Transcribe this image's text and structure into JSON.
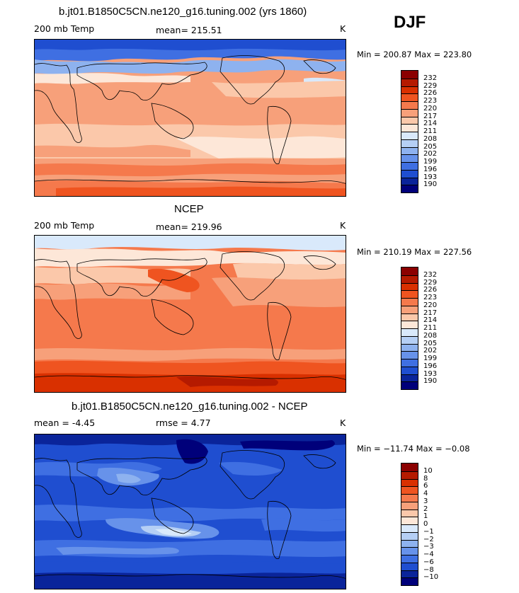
{
  "season": "DJF",
  "panels": [
    {
      "title": "b.jt01.B1850C5CN.ne120_g16.tuning.002 (yrs 1860)",
      "left_label": "200 mb Temp",
      "center_label": "mean= 215.51",
      "right_label": "K",
      "minmax": "Min = 200.87 Max = 223.80",
      "levels": [
        "232",
        "229",
        "226",
        "223",
        "220",
        "217",
        "214",
        "211",
        "208",
        "205",
        "202",
        "199",
        "196",
        "193",
        "190"
      ],
      "colors": [
        "#8b0000",
        "#b51a00",
        "#d93000",
        "#ef5420",
        "#f5794c",
        "#f7a07a",
        "#fbc8aa",
        "#fde7d8",
        "#d9e9fb",
        "#b5cff5",
        "#8eb2ef",
        "#6792ea",
        "#3f6fe2",
        "#1f4ed0",
        "#0a249a",
        "#00007a"
      ]
    },
    {
      "title": "NCEP",
      "left_label": "200 mb Temp",
      "center_label": "mean= 219.96",
      "right_label": "K",
      "minmax": "Min = 210.19 Max = 227.56",
      "levels": [
        "232",
        "229",
        "226",
        "223",
        "220",
        "217",
        "214",
        "211",
        "208",
        "205",
        "202",
        "199",
        "196",
        "193",
        "190"
      ],
      "colors": [
        "#8b0000",
        "#b51a00",
        "#d93000",
        "#ef5420",
        "#f5794c",
        "#f7a07a",
        "#fbc8aa",
        "#fde7d8",
        "#d9e9fb",
        "#b5cff5",
        "#8eb2ef",
        "#6792ea",
        "#3f6fe2",
        "#1f4ed0",
        "#0a249a",
        "#00007a"
      ]
    },
    {
      "title": "b.jt01.B1850C5CN.ne120_g16.tuning.002 - NCEP",
      "left_label": "mean =   -4.45",
      "center_label": "rmse =    4.77",
      "right_label": "K",
      "minmax": "Min = −11.74 Max =  −0.08",
      "levels": [
        "10",
        "8",
        "6",
        "4",
        "3",
        "2",
        "1",
        "0",
        "−1",
        "−2",
        "−3",
        "−4",
        "−6",
        "−8",
        "−10"
      ],
      "colors": [
        "#8b0000",
        "#b51a00",
        "#d93000",
        "#ef5420",
        "#f5794c",
        "#f7a07a",
        "#fbc8aa",
        "#fde7d8",
        "#d9e9fb",
        "#b5cff5",
        "#8eb2ef",
        "#6792ea",
        "#3f6fe2",
        "#1f4ed0",
        "#0a249a",
        "#00007a"
      ]
    }
  ]
}
